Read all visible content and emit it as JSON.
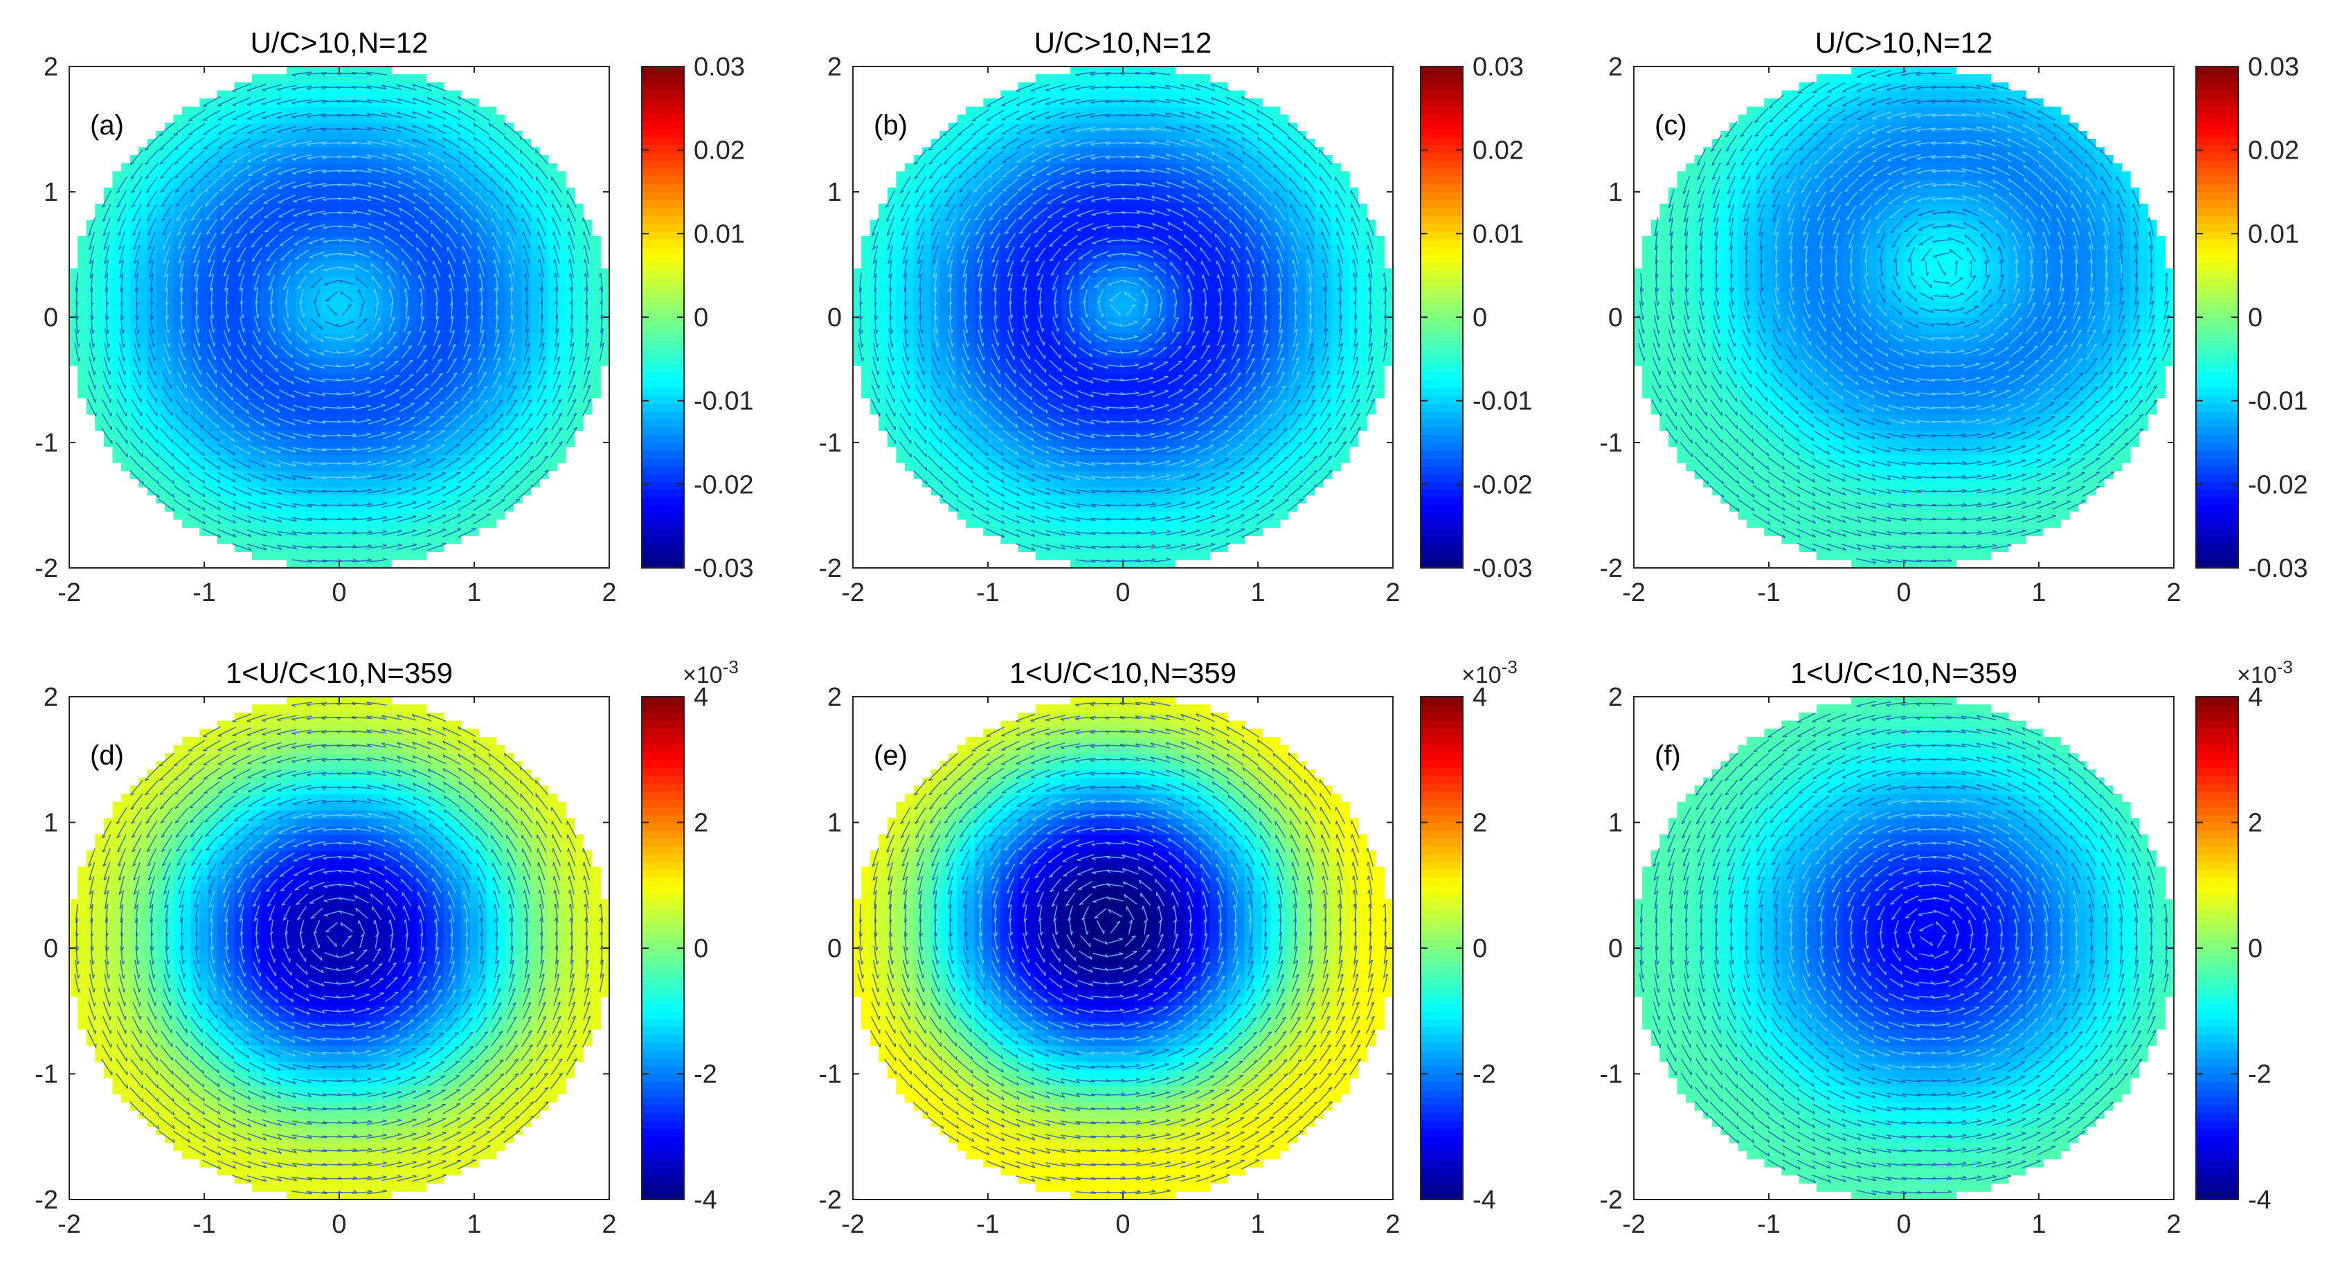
{
  "chart_data": [
    {
      "type": "heatmap",
      "panel_label": "(a)",
      "title": "U/C>10,N=12",
      "xlim": [
        -2,
        2
      ],
      "ylim": [
        -2,
        2
      ],
      "xticks": [
        -2,
        -1,
        0,
        1,
        2
      ],
      "yticks": [
        -2,
        -1,
        0,
        1,
        2
      ],
      "xtick_labels": [
        "-2",
        "-1",
        "0",
        "1",
        "2"
      ],
      "ytick_labels": [
        "-2",
        "-1",
        "0",
        "1",
        "2"
      ],
      "clim": [
        -0.03,
        0.03
      ],
      "colorbar_ticks": [
        -0.03,
        -0.02,
        -0.01,
        0,
        0.01,
        0.02,
        0.03
      ],
      "colorbar_labels": [
        "-0.03",
        "-0.02",
        "-0.01",
        "0",
        "0.01",
        "0.02",
        "0.03"
      ],
      "colorbar_exponent": "",
      "field": {
        "center": [
          0.0,
          0.1
        ],
        "radius": 2.0,
        "center_value": -0.01,
        "ring_value": -0.018,
        "ring_radius": 0.8,
        "edge_value": -0.004,
        "rotation": "counterclockwise"
      }
    },
    {
      "type": "heatmap",
      "panel_label": "(b)",
      "title": "U/C>10,N=12",
      "xlim": [
        -2,
        2
      ],
      "ylim": [
        -2,
        2
      ],
      "xticks": [
        -2,
        -1,
        0,
        1,
        2
      ],
      "yticks": [
        -2,
        -1,
        0,
        1,
        2
      ],
      "xtick_labels": [
        "-2",
        "-1",
        "0",
        "1",
        "2"
      ],
      "ytick_labels": [
        "-2",
        "-1",
        "0",
        "1",
        "2"
      ],
      "clim": [
        -0.03,
        0.03
      ],
      "colorbar_ticks": [
        -0.03,
        -0.02,
        -0.01,
        0,
        0.01,
        0.02,
        0.03
      ],
      "colorbar_labels": [
        "-0.03",
        "-0.02",
        "-0.01",
        "0",
        "0.01",
        "0.02",
        "0.03"
      ],
      "colorbar_exponent": "",
      "field": {
        "center": [
          0.0,
          0.1
        ],
        "radius": 2.0,
        "center_value": -0.012,
        "ring_value": -0.021,
        "ring_radius": 0.65,
        "edge_value": -0.005,
        "rotation": "counterclockwise"
      }
    },
    {
      "type": "heatmap",
      "panel_label": "(c)",
      "title": "U/C>10,N=12",
      "xlim": [
        -2,
        2
      ],
      "ylim": [
        -2,
        2
      ],
      "xticks": [
        -2,
        -1,
        0,
        1,
        2
      ],
      "yticks": [
        -2,
        -1,
        0,
        1,
        2
      ],
      "xtick_labels": [
        "-2",
        "-1",
        "0",
        "1",
        "2"
      ],
      "ytick_labels": [
        "-2",
        "-1",
        "0",
        "1",
        "2"
      ],
      "clim": [
        -0.03,
        0.03
      ],
      "colorbar_ticks": [
        -0.03,
        -0.02,
        -0.01,
        0,
        0.01,
        0.02,
        0.03
      ],
      "colorbar_labels": [
        "-0.03",
        "-0.02",
        "-0.01",
        "0",
        "0.01",
        "0.02",
        "0.03"
      ],
      "colorbar_exponent": "",
      "field": {
        "center": [
          0.3,
          0.4
        ],
        "radius": 2.0,
        "center_value": -0.007,
        "ring_value": -0.015,
        "ring_radius": 0.9,
        "edge_value": -0.004,
        "rotation": "counterclockwise"
      }
    },
    {
      "type": "heatmap",
      "panel_label": "(d)",
      "title": "1<U/C<10,N=359",
      "xlim": [
        -2,
        2
      ],
      "ylim": [
        -2,
        2
      ],
      "xticks": [
        -2,
        -1,
        0,
        1,
        2
      ],
      "yticks": [
        -2,
        -1,
        0,
        1,
        2
      ],
      "xtick_labels": [
        "-2",
        "-1",
        "0",
        "1",
        "2"
      ],
      "ytick_labels": [
        "-2",
        "-1",
        "0",
        "1",
        "2"
      ],
      "clim": [
        -4,
        4
      ],
      "colorbar_ticks": [
        -4,
        -2,
        0,
        2,
        4
      ],
      "colorbar_labels": [
        "-4",
        "-2",
        "0",
        "2",
        "4"
      ],
      "colorbar_exponent": "×10^-3",
      "colorbar_exponent_base": "×10",
      "colorbar_exponent_power": "-3",
      "field": {
        "center": [
          0.0,
          0.1
        ],
        "radius": 2.0,
        "center_value": -3.6,
        "ring_value": -3.6,
        "ring_radius": 0.0,
        "edge_value": 0.8,
        "rotation": "counterclockwise"
      }
    },
    {
      "type": "heatmap",
      "panel_label": "(e)",
      "title": "1<U/C<10,N=359",
      "xlim": [
        -2,
        2
      ],
      "ylim": [
        -2,
        2
      ],
      "xticks": [
        -2,
        -1,
        0,
        1,
        2
      ],
      "yticks": [
        -2,
        -1,
        0,
        1,
        2
      ],
      "xtick_labels": [
        "-2",
        "-1",
        "0",
        "1",
        "2"
      ],
      "ytick_labels": [
        "-2",
        "-1",
        "0",
        "1",
        "2"
      ],
      "clim": [
        -4,
        4
      ],
      "colorbar_ticks": [
        -4,
        -2,
        0,
        2,
        4
      ],
      "colorbar_labels": [
        "-4",
        "-2",
        "0",
        "2",
        "4"
      ],
      "colorbar_exponent": "×10^-3",
      "colorbar_exponent_base": "×10",
      "colorbar_exponent_power": "-3",
      "field": {
        "center": [
          -0.1,
          0.2
        ],
        "radius": 2.0,
        "center_value": -4.0,
        "ring_value": -4.0,
        "ring_radius": 0.0,
        "edge_value": 1.0,
        "rotation": "counterclockwise"
      }
    },
    {
      "type": "heatmap",
      "panel_label": "(f)",
      "title": "1<U/C<10,N=359",
      "xlim": [
        -2,
        2
      ],
      "ylim": [
        -2,
        2
      ],
      "xticks": [
        -2,
        -1,
        0,
        1,
        2
      ],
      "yticks": [
        -2,
        -1,
        0,
        1,
        2
      ],
      "xtick_labels": [
        "-2",
        "-1",
        "0",
        "1",
        "2"
      ],
      "ytick_labels": [
        "-2",
        "-1",
        "0",
        "1",
        "2"
      ],
      "clim": [
        -4,
        4
      ],
      "colorbar_ticks": [
        -4,
        -2,
        0,
        2,
        4
      ],
      "colorbar_labels": [
        "-4",
        "-2",
        "0",
        "2",
        "4"
      ],
      "colorbar_exponent": "×10^-3",
      "colorbar_exponent_base": "×10",
      "colorbar_exponent_power": "-3",
      "field": {
        "center": [
          0.2,
          0.1
        ],
        "radius": 2.0,
        "center_value": -3.0,
        "ring_value": -3.0,
        "ring_radius": 0.0,
        "edge_value": -0.4,
        "rotation": "counterclockwise"
      }
    }
  ]
}
